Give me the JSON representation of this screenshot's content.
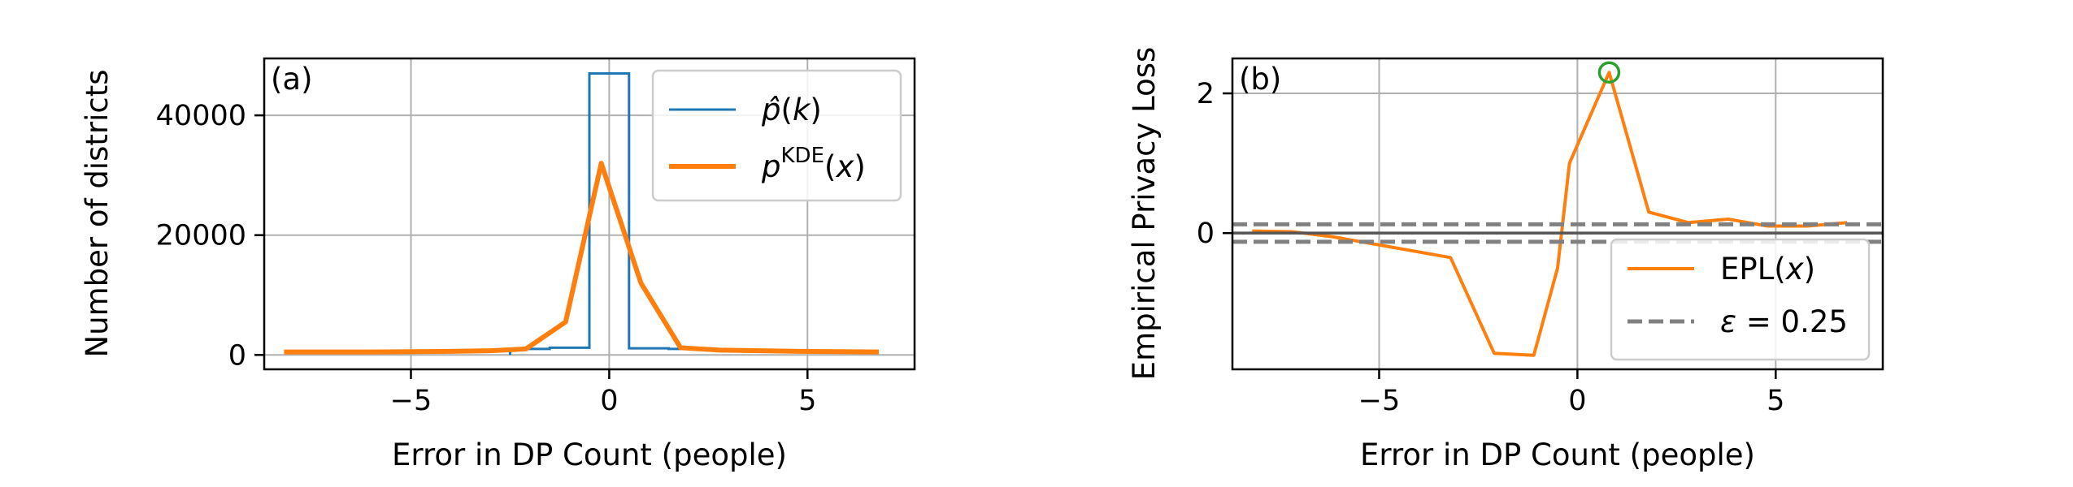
{
  "chart_data": [
    {
      "panel": "(a)",
      "type": "line",
      "xlabel": "Error in DP Count (people)",
      "ylabel": "Number of districts",
      "xlim": [
        -8.7,
        7.7
      ],
      "ylim": [
        -2400,
        49500
      ],
      "xticks": [
        -5,
        0,
        5
      ],
      "xtick_labels": [
        "−5",
        "0",
        "5"
      ],
      "yticks": [
        0,
        20000,
        40000
      ],
      "ytick_labels": [
        "0",
        "20000",
        "40000"
      ],
      "grid": true,
      "legend_position": "top-right",
      "series": [
        {
          "name": "p̂(k)",
          "style": "step",
          "color": "#1f77b4",
          "x": [
            -2.5,
            -1.5,
            -0.5,
            0.5,
            1.5,
            2.5
          ],
          "y": [
            1000,
            1200,
            47000,
            1100,
            1000,
            800
          ]
        },
        {
          "name": "p^KDE(x)",
          "style": "line",
          "color": "#ff7f0e",
          "x": [
            -8.2,
            -6.0,
            -4.0,
            -3.0,
            -2.1,
            -1.1,
            -0.2,
            0.8,
            1.8,
            2.8,
            3.8,
            4.8,
            5.8,
            6.8
          ],
          "y": [
            500,
            500,
            600,
            700,
            1000,
            5500,
            32000,
            12000,
            1200,
            800,
            700,
            600,
            550,
            500
          ]
        }
      ]
    },
    {
      "panel": "(b)",
      "type": "line",
      "xlabel": "Error in DP Count (people)",
      "ylabel": "Empirical Privacy Loss",
      "xlim": [
        -8.7,
        7.7
      ],
      "ylim": [
        -1.95,
        2.5
      ],
      "xticks": [
        -5,
        0,
        5
      ],
      "xtick_labels": [
        "−5",
        "0",
        "5"
      ],
      "yticks": [
        0,
        2
      ],
      "ytick_labels": [
        "0",
        "2"
      ],
      "grid": true,
      "legend_position": "lower-right",
      "epsilon": 0.25,
      "series": [
        {
          "name": "EPL(x)",
          "style": "line",
          "color": "#ff7f0e",
          "x": [
            -8.2,
            -7.2,
            -6.2,
            -5.2,
            -4.2,
            -3.2,
            -2.1,
            -1.1,
            -0.5,
            -0.2,
            0.8,
            1.8,
            2.8,
            3.8,
            4.8,
            5.8,
            6.8
          ],
          "y": [
            0.03,
            0.02,
            -0.05,
            -0.15,
            -0.25,
            -0.35,
            -1.72,
            -1.75,
            -0.5,
            1.0,
            2.3,
            0.3,
            0.15,
            0.2,
            0.1,
            0.1,
            0.15
          ]
        },
        {
          "name": "ε = 0.25",
          "style": "dashed",
          "color": "#808080",
          "y_levels": [
            0.125,
            -0.125
          ]
        }
      ],
      "highlight": {
        "x": 0.8,
        "y": 2.3,
        "color": "#2ca02c"
      }
    }
  ]
}
